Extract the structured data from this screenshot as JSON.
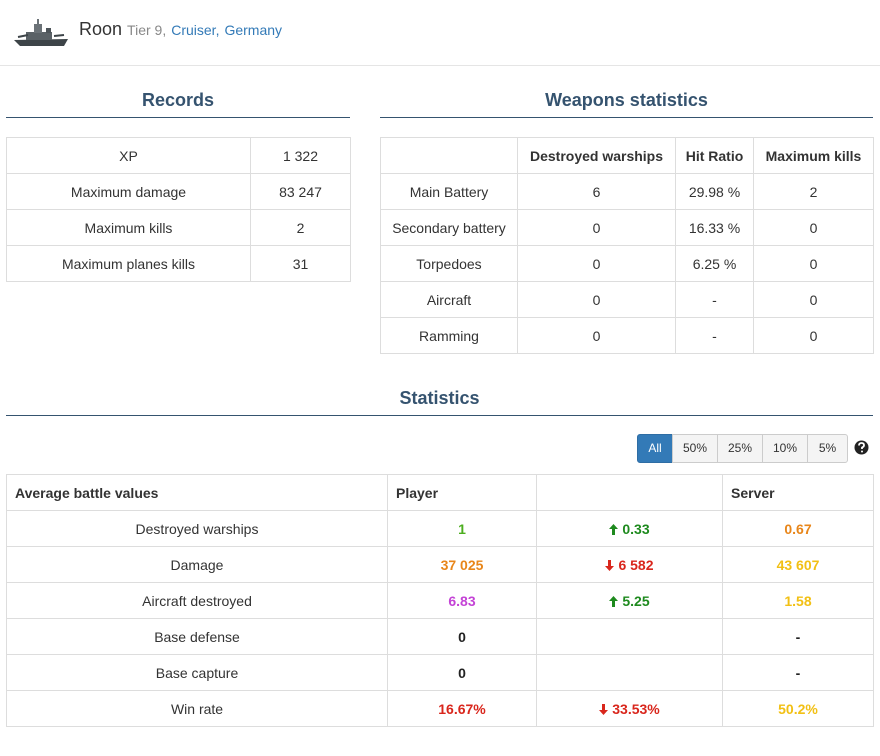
{
  "header": {
    "name": "Roon",
    "tier": "Tier 9,",
    "class": "Cruiser,",
    "nation": "Germany"
  },
  "records": {
    "title": "Records",
    "rows": [
      [
        "XP",
        "1 322"
      ],
      [
        "Maximum damage",
        "83 247"
      ],
      [
        "Maximum kills",
        "2"
      ],
      [
        "Maximum planes kills",
        "31"
      ]
    ]
  },
  "weapons": {
    "title": "Weapons statistics",
    "headers": [
      "Destroyed warships",
      "Hit Ratio",
      "Maximum kills"
    ],
    "rows": [
      [
        "Main Battery",
        "6",
        "29.98 %",
        "2"
      ],
      [
        "Secondary battery",
        "0",
        "16.33 %",
        "0"
      ],
      [
        "Torpedoes",
        "0",
        "6.25 %",
        "0"
      ],
      [
        "Aircraft",
        "0",
        "-",
        "0"
      ],
      [
        "Ramming",
        "0",
        "-",
        "0"
      ]
    ]
  },
  "statistics": {
    "title": "Statistics",
    "filters": [
      "All",
      "50%",
      "25%",
      "10%",
      "5%"
    ],
    "active_filter": 0,
    "headers": [
      "Average battle values",
      "Player",
      "Server"
    ],
    "rows": [
      {
        "label": "Destroyed warships",
        "player": "1",
        "player_color": "#4cae1f",
        "diff": "0.33",
        "diff_direction": "up",
        "server": "0.67",
        "server_color": "#e8861a"
      },
      {
        "label": "Damage",
        "player": "37 025",
        "player_color": "#e8861a",
        "diff": "6 582",
        "diff_direction": "down",
        "server": "43 607",
        "server_color": "#f2c014"
      },
      {
        "label": "Aircraft destroyed",
        "player": "6.83",
        "player_color": "#c443d6",
        "diff": "5.25",
        "diff_direction": "up",
        "server": "1.58",
        "server_color": "#f2c014"
      },
      {
        "label": "Base defense",
        "player": "0",
        "player_color": "#222222",
        "server": "-",
        "server_color": "#222222"
      },
      {
        "label": "Base capture",
        "player": "0",
        "player_color": "#222222",
        "server": "-",
        "server_color": "#222222"
      },
      {
        "label": "Win rate",
        "player": "16.67%",
        "player_color": "#d9261c",
        "diff": "33.53%",
        "diff_direction": "down",
        "server": "50.2%",
        "server_color": "#f2c014"
      }
    ]
  }
}
